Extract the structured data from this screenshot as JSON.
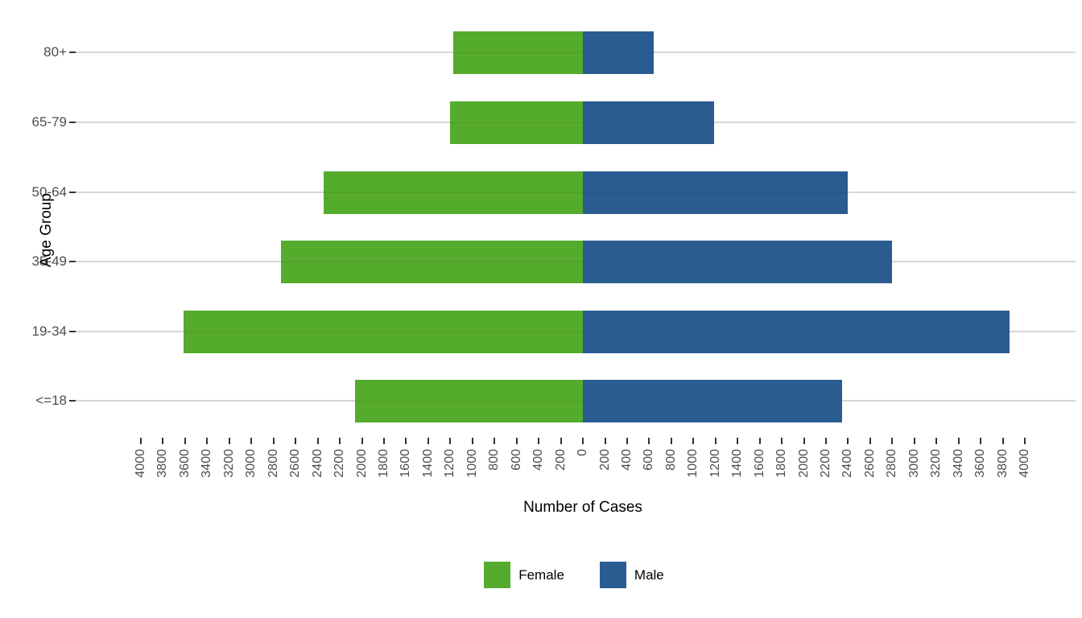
{
  "chart_data": {
    "type": "bar",
    "variant": "population-pyramid-diverging-horizontal",
    "title": "",
    "xlabel": "Number of Cases",
    "ylabel": "Age Group",
    "categories_top_to_bottom": [
      "80+",
      "65-79",
      "50-64",
      "35-49",
      "19-34",
      "<=18"
    ],
    "series": [
      {
        "name": "Female",
        "side": "left",
        "color": "#55ab2c",
        "values": [
          1175,
          1205,
          2345,
          2730,
          3615,
          2065
        ]
      },
      {
        "name": "Male",
        "side": "right",
        "color": "#2b5c91",
        "values": [
          640,
          1185,
          2395,
          2795,
          3860,
          2345
        ]
      }
    ],
    "x_axis": {
      "min": -4000,
      "max": 4000,
      "tick_step": 200,
      "tick_label_format": "absolute-value",
      "tick_label_rotation_deg": 90,
      "tick_color": "#333333",
      "tick_text_color": "#4d4d4d"
    },
    "y_axis": {
      "tick_text_color": "#4d4d4d"
    },
    "grid": {
      "horizontal": true,
      "vertical": false,
      "color": "#d6d6d6"
    },
    "legend": {
      "position": "bottom",
      "entries": [
        {
          "label": "Female",
          "color": "#55ab2c"
        },
        {
          "label": "Male",
          "color": "#2b5c91"
        }
      ]
    },
    "background": "#ffffff"
  }
}
